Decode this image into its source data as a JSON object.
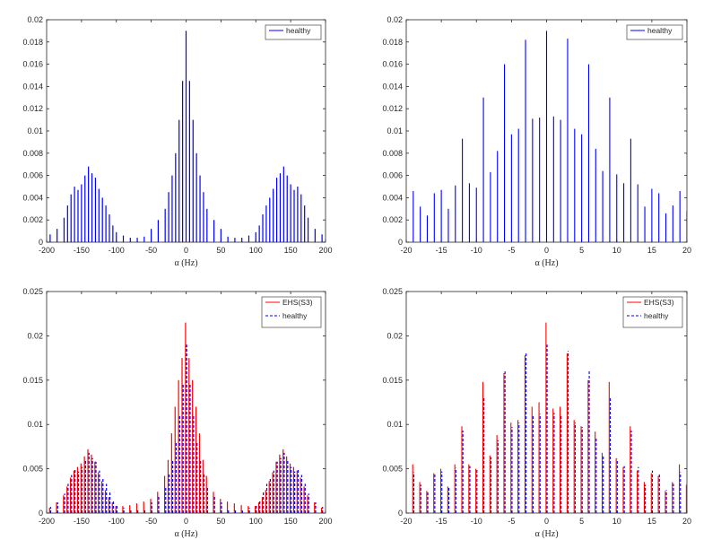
{
  "figure": {
    "colors": {
      "healthy": "#0000ff",
      "ehs": "#ff0000",
      "axes": "#262626",
      "background": "#ffffff"
    },
    "panels": [
      {
        "id": "top-left",
        "xlabel": "α (Hz)"
      },
      {
        "id": "top-right",
        "xlabel": "α (Hz)"
      },
      {
        "id": "bottom-left",
        "xlabel": "α (Hz)"
      },
      {
        "id": "bottom-right",
        "xlabel": "α (Hz)"
      }
    ]
  },
  "chart_data": [
    {
      "type": "line",
      "title": "",
      "xlabel": "α (Hz)",
      "ylabel": "",
      "xlim": [
        -200,
        200
      ],
      "ylim": [
        0,
        0.02
      ],
      "xticks": [
        -200,
        -150,
        -100,
        -50,
        0,
        50,
        100,
        150,
        200
      ],
      "yticks": [
        0,
        0.002,
        0.004,
        0.006,
        0.008,
        0.01,
        0.012,
        0.014,
        0.016,
        0.018,
        0.02
      ],
      "legend_position": "top-right",
      "series": [
        {
          "name": "healthy",
          "color": "#0000ff",
          "style": "solid",
          "x": [
            -195,
            -185,
            -175,
            -170,
            -165,
            -160,
            -155,
            -150,
            -145,
            -140,
            -135,
            -130,
            -125,
            -120,
            -115,
            -110,
            -105,
            -100,
            -90,
            -80,
            -70,
            -60,
            -50,
            -40,
            -30,
            -25,
            -20,
            -15,
            -10,
            -5,
            0,
            5,
            10,
            15,
            20,
            25,
            30,
            40,
            50,
            60,
            70,
            80,
            90,
            100,
            105,
            110,
            115,
            120,
            125,
            130,
            135,
            140,
            145,
            150,
            155,
            160,
            165,
            170,
            175,
            185,
            195
          ],
          "y": [
            0.0007,
            0.0012,
            0.0022,
            0.0033,
            0.0043,
            0.005,
            0.0047,
            0.0052,
            0.006,
            0.0068,
            0.0062,
            0.0058,
            0.0048,
            0.004,
            0.0033,
            0.0025,
            0.0015,
            0.0009,
            0.0006,
            0.0004,
            0.0004,
            0.0005,
            0.0012,
            0.002,
            0.003,
            0.0045,
            0.006,
            0.008,
            0.011,
            0.0145,
            0.019,
            0.0145,
            0.011,
            0.008,
            0.006,
            0.0045,
            0.003,
            0.002,
            0.0012,
            0.0005,
            0.0004,
            0.0004,
            0.0006,
            0.0009,
            0.0015,
            0.0025,
            0.0033,
            0.004,
            0.0048,
            0.0058,
            0.0062,
            0.0068,
            0.006,
            0.0052,
            0.0047,
            0.005,
            0.0043,
            0.0033,
            0.0022,
            0.0012,
            0.0007
          ]
        }
      ]
    },
    {
      "type": "line",
      "title": "",
      "xlabel": "α (Hz)",
      "ylabel": "",
      "xlim": [
        -20,
        20
      ],
      "ylim": [
        0,
        0.02
      ],
      "xticks": [
        -20,
        -15,
        -10,
        -5,
        0,
        5,
        10,
        15,
        20
      ],
      "yticks": [
        0,
        0.002,
        0.004,
        0.006,
        0.008,
        0.01,
        0.012,
        0.014,
        0.016,
        0.018,
        0.02
      ],
      "legend_position": "top-right",
      "series": [
        {
          "name": "healthy",
          "color": "#0000ff",
          "style": "solid",
          "x": [
            -19,
            -18,
            -17,
            -16,
            -15,
            -14,
            -13,
            -12,
            -11,
            -10,
            -9,
            -8,
            -7,
            -6,
            -5,
            -4,
            -3,
            -2,
            -1,
            0,
            1,
            2,
            3,
            4,
            5,
            6,
            7,
            8,
            9,
            10,
            11,
            12,
            13,
            14,
            15,
            16,
            17,
            18,
            19,
            20
          ],
          "y": [
            0.0046,
            0.0032,
            0.0024,
            0.0044,
            0.0047,
            0.003,
            0.0051,
            0.0093,
            0.0053,
            0.0049,
            0.013,
            0.0063,
            0.0082,
            0.016,
            0.0097,
            0.0102,
            0.0182,
            0.0111,
            0.0112,
            0.019,
            0.0113,
            0.011,
            0.0183,
            0.0102,
            0.0097,
            0.016,
            0.0084,
            0.0064,
            0.013,
            0.0061,
            0.0053,
            0.0093,
            0.0052,
            0.0032,
            0.0048,
            0.0044,
            0.0026,
            0.0033,
            0.0046,
            0.0028
          ]
        }
      ]
    },
    {
      "type": "line",
      "title": "",
      "xlabel": "α (Hz)",
      "ylabel": "",
      "xlim": [
        -200,
        200
      ],
      "ylim": [
        0,
        0.025
      ],
      "xticks": [
        -200,
        -150,
        -100,
        -50,
        0,
        50,
        100,
        150,
        200
      ],
      "yticks": [
        0,
        0.005,
        0.01,
        0.015,
        0.02,
        0.025
      ],
      "legend_position": "top-right",
      "series": [
        {
          "name": "EHS(S3)",
          "color": "#ff0000",
          "style": "solid",
          "x": [
            -195,
            -185,
            -175,
            -170,
            -165,
            -160,
            -155,
            -150,
            -145,
            -140,
            -135,
            -130,
            -125,
            -120,
            -115,
            -110,
            -105,
            -100,
            -90,
            -80,
            -70,
            -60,
            -50,
            -40,
            -30,
            -25,
            -20,
            -15,
            -10,
            -5,
            0,
            5,
            10,
            15,
            20,
            25,
            30,
            40,
            50,
            60,
            70,
            80,
            90,
            100,
            105,
            110,
            115,
            120,
            125,
            130,
            135,
            140,
            145,
            150,
            155,
            160,
            165,
            170,
            175,
            185,
            195
          ],
          "y": [
            0.0006,
            0.0012,
            0.002,
            0.003,
            0.004,
            0.0048,
            0.0052,
            0.0056,
            0.0064,
            0.0072,
            0.0066,
            0.0058,
            0.0046,
            0.0036,
            0.0026,
            0.0018,
            0.0012,
            0.0008,
            0.0008,
            0.0009,
            0.0011,
            0.0013,
            0.0016,
            0.0024,
            0.0042,
            0.006,
            0.009,
            0.012,
            0.015,
            0.0175,
            0.0215,
            0.0175,
            0.015,
            0.012,
            0.009,
            0.006,
            0.0042,
            0.0024,
            0.0016,
            0.0013,
            0.0011,
            0.0009,
            0.0008,
            0.0008,
            0.0012,
            0.0018,
            0.0026,
            0.0036,
            0.0046,
            0.0058,
            0.0066,
            0.0072,
            0.0064,
            0.0056,
            0.0052,
            0.0048,
            0.004,
            0.003,
            0.002,
            0.0012,
            0.0006
          ]
        },
        {
          "name": "healthy",
          "color": "#0000ff",
          "style": "dashed",
          "x": [
            -195,
            -185,
            -175,
            -170,
            -165,
            -160,
            -155,
            -150,
            -145,
            -140,
            -135,
            -130,
            -125,
            -120,
            -115,
            -110,
            -105,
            -100,
            -90,
            -80,
            -70,
            -60,
            -50,
            -40,
            -30,
            -25,
            -20,
            -15,
            -10,
            -5,
            0,
            5,
            10,
            15,
            20,
            25,
            30,
            40,
            50,
            60,
            70,
            80,
            90,
            100,
            105,
            110,
            115,
            120,
            125,
            130,
            135,
            140,
            145,
            150,
            155,
            160,
            165,
            170,
            175,
            185,
            195
          ],
          "y": [
            0.0007,
            0.0012,
            0.0022,
            0.0033,
            0.0043,
            0.005,
            0.0047,
            0.0052,
            0.006,
            0.0068,
            0.0062,
            0.0058,
            0.0048,
            0.004,
            0.0033,
            0.0025,
            0.0015,
            0.0009,
            0.0006,
            0.0004,
            0.0004,
            0.0005,
            0.0012,
            0.002,
            0.003,
            0.0045,
            0.006,
            0.008,
            0.011,
            0.0145,
            0.019,
            0.0145,
            0.011,
            0.008,
            0.006,
            0.0045,
            0.003,
            0.002,
            0.0012,
            0.0005,
            0.0004,
            0.0004,
            0.0006,
            0.0009,
            0.0015,
            0.0025,
            0.0033,
            0.004,
            0.0048,
            0.0058,
            0.0062,
            0.0068,
            0.006,
            0.0052,
            0.0047,
            0.005,
            0.0043,
            0.0033,
            0.0022,
            0.0012,
            0.0007
          ]
        }
      ]
    },
    {
      "type": "line",
      "title": "",
      "xlabel": "α (Hz)",
      "ylabel": "",
      "xlim": [
        -20,
        20
      ],
      "ylim": [
        0,
        0.025
      ],
      "xticks": [
        -20,
        -15,
        -10,
        -5,
        0,
        5,
        10,
        15,
        20
      ],
      "yticks": [
        0,
        0.005,
        0.01,
        0.015,
        0.02,
        0.025
      ],
      "legend_position": "top-right",
      "series": [
        {
          "name": "EHS(S3)",
          "color": "#ff0000",
          "style": "solid",
          "x": [
            -19,
            -18,
            -17,
            -16,
            -15,
            -14,
            -13,
            -12,
            -11,
            -10,
            -9,
            -8,
            -7,
            -6,
            -5,
            -4,
            -3,
            -2,
            -1,
            0,
            1,
            2,
            3,
            4,
            5,
            6,
            7,
            8,
            9,
            10,
            11,
            12,
            13,
            14,
            15,
            16,
            17,
            18,
            19,
            20
          ],
          "y": [
            0.0055,
            0.0035,
            0.0025,
            0.0045,
            0.005,
            0.003,
            0.0055,
            0.0098,
            0.0055,
            0.005,
            0.0148,
            0.0065,
            0.0088,
            0.0158,
            0.0102,
            0.0105,
            0.0178,
            0.012,
            0.0125,
            0.0215,
            0.0118,
            0.012,
            0.018,
            0.0105,
            0.0098,
            0.015,
            0.0092,
            0.0068,
            0.0148,
            0.0062,
            0.0052,
            0.0098,
            0.0048,
            0.0035,
            0.0045,
            0.0042,
            0.0025,
            0.0035,
            0.0055,
            0.0032
          ]
        },
        {
          "name": "healthy",
          "color": "#0000ff",
          "style": "dashed",
          "x": [
            -19,
            -18,
            -17,
            -16,
            -15,
            -14,
            -13,
            -12,
            -11,
            -10,
            -9,
            -8,
            -7,
            -6,
            -5,
            -4,
            -3,
            -2,
            -1,
            0,
            1,
            2,
            3,
            4,
            5,
            6,
            7,
            8,
            9,
            10,
            11,
            12,
            13,
            14,
            15,
            16,
            17,
            18,
            19,
            20
          ],
          "y": [
            0.0046,
            0.0032,
            0.0024,
            0.0044,
            0.0047,
            0.003,
            0.0051,
            0.0093,
            0.0053,
            0.0049,
            0.013,
            0.0063,
            0.0082,
            0.016,
            0.0097,
            0.0102,
            0.0182,
            0.0111,
            0.0112,
            0.019,
            0.0113,
            0.011,
            0.0183,
            0.0102,
            0.0097,
            0.016,
            0.0084,
            0.0064,
            0.013,
            0.0061,
            0.0053,
            0.0093,
            0.0052,
            0.0032,
            0.0048,
            0.0044,
            0.0026,
            0.0033,
            0.0046,
            0.0028
          ]
        }
      ]
    }
  ]
}
